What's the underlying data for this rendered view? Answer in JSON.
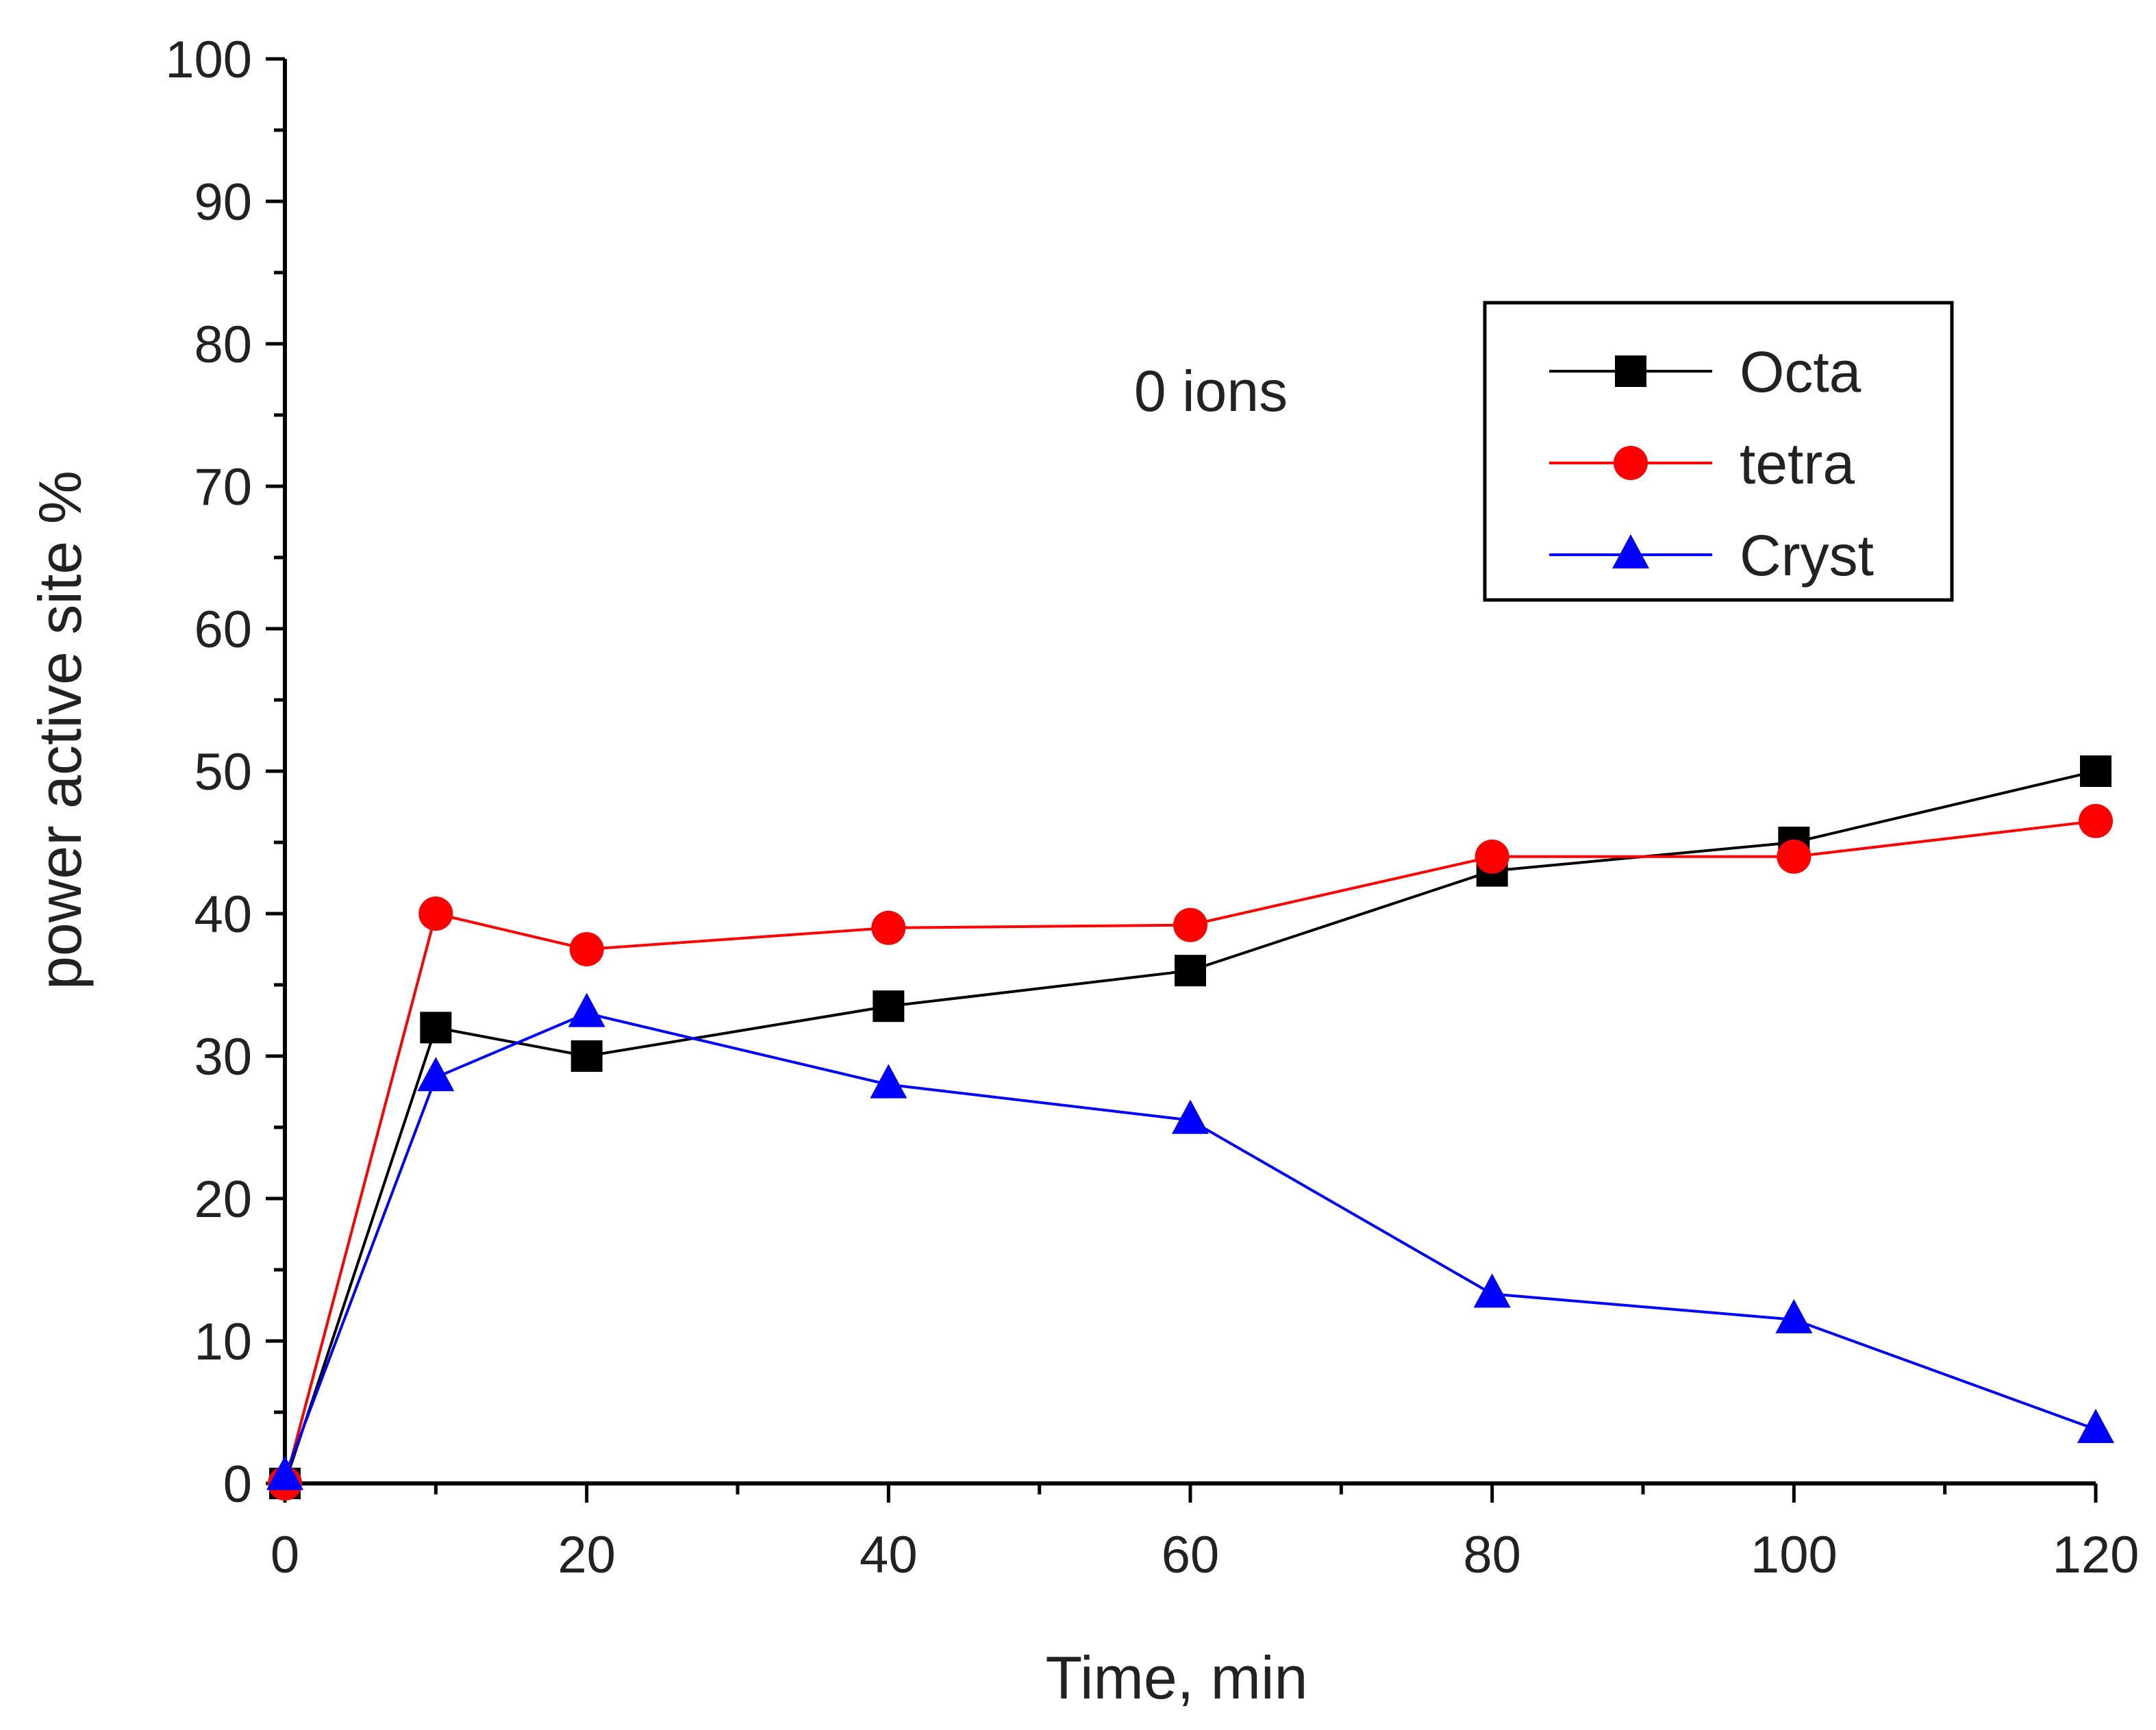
{
  "chart_data": {
    "type": "line",
    "title": "",
    "xlabel": "Time, min",
    "ylabel": "power active site %",
    "xlim": [
      0,
      120
    ],
    "ylim": [
      0,
      100
    ],
    "x_ticks": [
      0,
      20,
      40,
      60,
      80,
      100,
      120
    ],
    "y_ticks": [
      0,
      10,
      20,
      30,
      40,
      50,
      60,
      70,
      80,
      90,
      100
    ],
    "x_minor_step": 10,
    "y_minor_step": 5,
    "grid": false,
    "legend_position": "top-right",
    "annotation": "0 ions",
    "series": [
      {
        "name": "Octa",
        "color": "#000000",
        "marker": "square",
        "x": [
          0,
          10,
          20,
          40,
          60,
          80,
          100,
          120
        ],
        "y": [
          0,
          32,
          30,
          33.5,
          36,
          43,
          45,
          50
        ]
      },
      {
        "name": "tetra",
        "color": "#ff0000",
        "marker": "circle",
        "x": [
          0,
          10,
          20,
          40,
          60,
          80,
          100,
          120
        ],
        "y": [
          0,
          40,
          37.5,
          39,
          39.2,
          44,
          44,
          46.5
        ]
      },
      {
        "name": "Cryst",
        "color": "#0000ff",
        "marker": "triangle",
        "x": [
          0,
          10,
          20,
          40,
          60,
          80,
          100,
          120
        ],
        "y": [
          0.5,
          28.5,
          33,
          28,
          25.5,
          13.3,
          11.5,
          3.8
        ]
      }
    ]
  }
}
